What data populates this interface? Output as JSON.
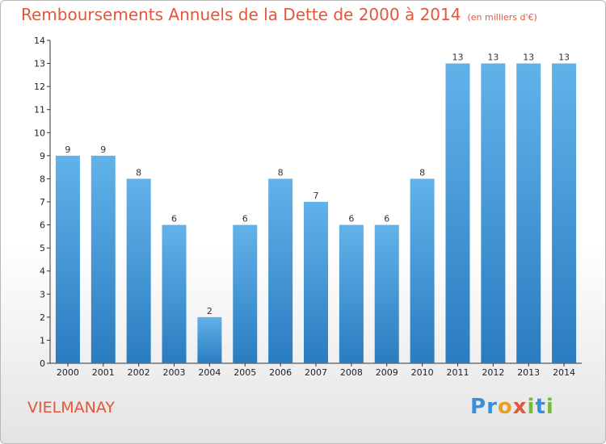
{
  "chart_data": {
    "type": "bar",
    "title": "Remboursements Annuels de la Dette de 2000 à 2014",
    "subtitle": "(en milliers d'€)",
    "categories": [
      "2000",
      "2001",
      "2002",
      "2003",
      "2004",
      "2005",
      "2006",
      "2007",
      "2008",
      "2009",
      "2010",
      "2011",
      "2012",
      "2013",
      "2014"
    ],
    "values": [
      9,
      9,
      8,
      6,
      2,
      6,
      8,
      7,
      6,
      6,
      8,
      13,
      13,
      13,
      13
    ],
    "ylim": [
      0,
      14
    ],
    "yticks": [
      0,
      1,
      2,
      3,
      4,
      5,
      6,
      7,
      8,
      9,
      10,
      11,
      12,
      13,
      14
    ],
    "xlabel": "",
    "ylabel": "",
    "grid": false
  },
  "footer": {
    "commune": "VIELMANAY",
    "logo_letters": [
      {
        "ch": "P",
        "color": "#3a8fd6"
      },
      {
        "ch": "r",
        "color": "#3a8fd6"
      },
      {
        "ch": "o",
        "color": "#e8a020"
      },
      {
        "ch": "x",
        "color": "#e2573a"
      },
      {
        "ch": "i",
        "color": "#7ab83a"
      },
      {
        "ch": "t",
        "color": "#3a8fd6"
      },
      {
        "ch": "i",
        "color": "#7ab83a"
      }
    ]
  },
  "colors": {
    "bar_top": "#62b2ea",
    "bar_bottom": "#2a7cc0",
    "accent": "#e2573a",
    "axis": "#333333"
  }
}
